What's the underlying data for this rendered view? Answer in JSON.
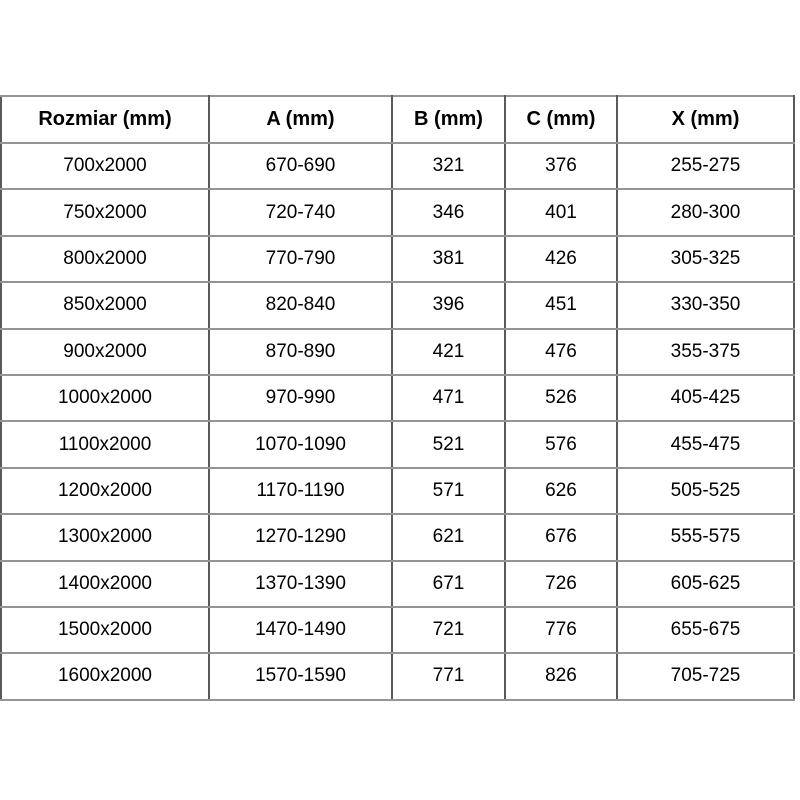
{
  "table": {
    "columns": [
      "Rozmiar (mm)",
      "A (mm)",
      "B (mm)",
      "C (mm)",
      "X (mm)"
    ],
    "rows": [
      [
        "700x2000",
        "670-690",
        "321",
        "376",
        "255-275"
      ],
      [
        "750x2000",
        "720-740",
        "346",
        "401",
        "280-300"
      ],
      [
        "800x2000",
        "770-790",
        "381",
        "426",
        "305-325"
      ],
      [
        "850x2000",
        "820-840",
        "396",
        "451",
        "330-350"
      ],
      [
        "900x2000",
        "870-890",
        "421",
        "476",
        "355-375"
      ],
      [
        "1000x2000",
        "970-990",
        "471",
        "526",
        "405-425"
      ],
      [
        "1100x2000",
        "1070-1090",
        "521",
        "576",
        "455-475"
      ],
      [
        "1200x2000",
        "1170-1190",
        "571",
        "626",
        "505-525"
      ],
      [
        "1300x2000",
        "1270-1290",
        "621",
        "676",
        "555-575"
      ],
      [
        "1400x2000",
        "1370-1390",
        "671",
        "726",
        "605-625"
      ],
      [
        "1500x2000",
        "1470-1490",
        "721",
        "776",
        "655-675"
      ],
      [
        "1600x2000",
        "1570-1590",
        "771",
        "826",
        "705-725"
      ]
    ]
  }
}
